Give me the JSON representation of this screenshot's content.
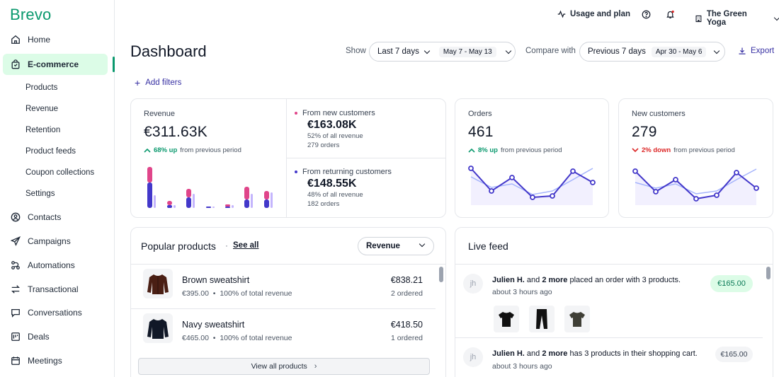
{
  "brand": {
    "name": "Brevo",
    "color": "#0b996e",
    "accent": "#3730a3"
  },
  "sidebar": {
    "items": [
      {
        "label": "Home",
        "icon": "home-icon"
      },
      {
        "label": "E-commerce",
        "icon": "shopping-bag-icon",
        "active": true
      },
      {
        "label": "Contacts",
        "icon": "contact-icon"
      },
      {
        "label": "Campaigns",
        "icon": "send-icon"
      },
      {
        "label": "Automations",
        "icon": "automation-icon"
      },
      {
        "label": "Transactional",
        "icon": "transfer-icon"
      },
      {
        "label": "Conversations",
        "icon": "chat-icon"
      },
      {
        "label": "Deals",
        "icon": "deals-icon"
      },
      {
        "label": "Meetings",
        "icon": "calendar-icon"
      }
    ],
    "ecommerce_sub": [
      "Products",
      "Revenue",
      "Retention",
      "Product feeds",
      "Coupon collections",
      "Settings"
    ]
  },
  "topbar": {
    "usage": "Usage and plan",
    "account": "The Green Yoga"
  },
  "header": {
    "title": "Dashboard",
    "show_label": "Show",
    "period": "Last 7 days",
    "period_dates": "May 7 - May 13",
    "compare_label": "Compare with",
    "compare_period": "Previous 7 days",
    "compare_dates": "Apr 30 - May 6",
    "export": "Export",
    "add_filters": "Add filters"
  },
  "revenue": {
    "label": "Revenue",
    "value": "€311.63K",
    "trend_value": "68% up",
    "trend_text": "from previous period",
    "new_customers": {
      "label": "From new customers",
      "value": "€163.08K",
      "share": "52% of all revenue",
      "orders": "279 orders",
      "color": "#e0458a"
    },
    "returning_customers": {
      "label": "From returning customers",
      "value": "€148.55K",
      "share": "48% of all revenue",
      "orders": "182 orders",
      "color": "#4338ca"
    }
  },
  "orders": {
    "label": "Orders",
    "value": "461",
    "trend_value": "8% up",
    "trend_text": "from previous period"
  },
  "new_customers": {
    "label": "New customers",
    "value": "279",
    "trend_value": "2% down",
    "trend_text": "from previous period"
  },
  "popular_products": {
    "title": "Popular products",
    "see_all": "See all",
    "sort": "Revenue",
    "items": [
      {
        "name": "Brown sweatshirt",
        "price": "€395.00",
        "share": "100% of total revenue",
        "revenue": "€838.21",
        "ordered": "2 ordered"
      },
      {
        "name": "Navy sweatshirt",
        "price": "€465.00",
        "share": "100% of total revenue",
        "revenue": "€418.50",
        "ordered": "1 ordered"
      }
    ],
    "view_all": "View all products"
  },
  "live_feed": {
    "title": "Live feed",
    "items": [
      {
        "initials": "jh",
        "name": "Julien H.",
        "and": "and",
        "more": "2 more",
        "action": "placed an order with 3 products.",
        "time": "about 3 hours ago",
        "amount": "€165.00"
      },
      {
        "initials": "jh",
        "name": "Julien H.",
        "and": "and",
        "more": "2 more",
        "action": "has 3 products in their shopping cart.",
        "time": "about 3 hours ago",
        "amount": "€165.00"
      }
    ]
  }
}
